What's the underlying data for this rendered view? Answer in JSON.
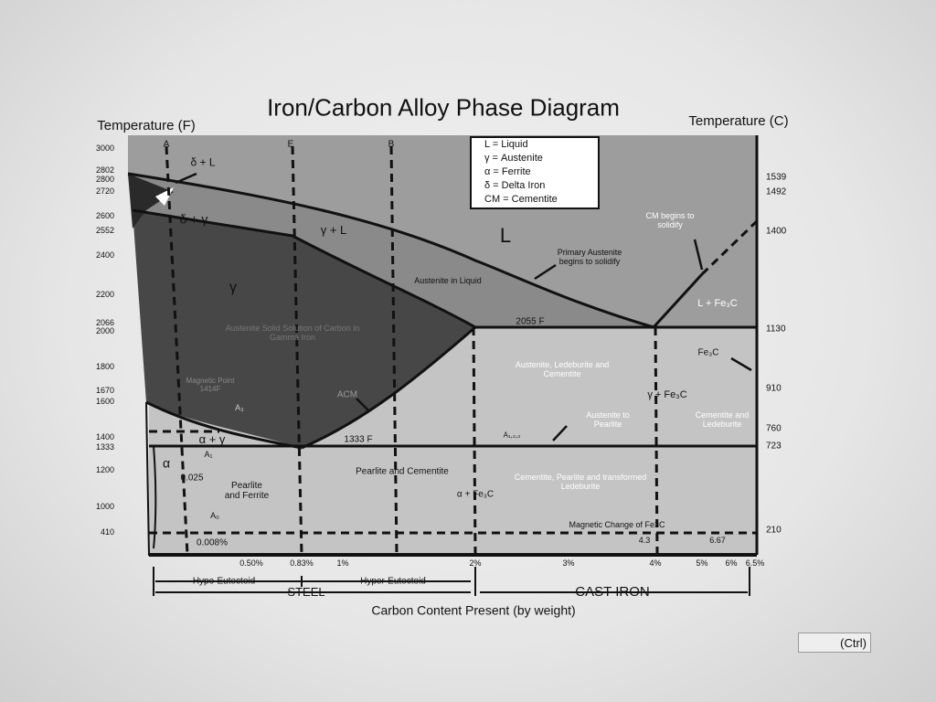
{
  "title": "Iron/Carbon Alloy Phase Diagram",
  "axis": {
    "left_title": "Temperature (F)",
    "right_title": "Temperature (C)",
    "x_title": "Carbon Content Present (by weight)",
    "left_ticks": [
      3000,
      2802,
      2800,
      2720,
      2600,
      2552,
      2400,
      2200,
      2066,
      2000,
      1800,
      1670,
      1600,
      1400,
      1333,
      1200,
      1000,
      410
    ],
    "right_ticks": [
      1539,
      1492,
      1400,
      1130,
      910,
      760,
      723,
      210
    ],
    "bottom_ticks": [
      "0.50%",
      "0.83%",
      "1%",
      "2%",
      "3%",
      "4%",
      "5%",
      "6%",
      "6.5%"
    ],
    "top_markers": [
      "A",
      "E",
      "B"
    ]
  },
  "legend": [
    "L = Liquid",
    "γ = Austenite",
    "α = Ferrite",
    "δ = Delta Iron",
    "CM = Cementite"
  ],
  "labels": [
    "δ + L",
    "δ + γ",
    "γ + L",
    "L",
    "γ",
    "Austenite in Liquid",
    "Primary Austenite begins to solidify",
    "CM begins to solidify",
    "L + Fe₃C",
    "2055 F",
    "Austenite Solid Solution of Carbon in Gamma Iron",
    "Magnetic Point 1414F",
    "ACM",
    "A₃",
    "α + γ",
    "A₁",
    "α",
    "0.025",
    "Pearlite and Ferrite",
    "1333 F",
    "Pearlite and Cementite",
    "α + Fe₃C",
    "Austenite, Ledeburite and Cementite",
    "Fe₃C",
    "γ + Fe₃C",
    "Austenite to Pearlite",
    "Cementite and Ledeburite",
    "A₁,₂,₃",
    "Cementite, Pearlite and transformed Ledeburite",
    "Magnetic Change of Fe3C",
    "4.3",
    "6.67",
    "A₀",
    "0.008%"
  ],
  "bands": {
    "hypo": "Hypo-Eutectoid",
    "hyper": "Hyper-Eutectoid",
    "steel": "STEEL",
    "cast_iron": "CAST IRON"
  },
  "ui": {
    "paste_button": "(Ctrl)"
  }
}
